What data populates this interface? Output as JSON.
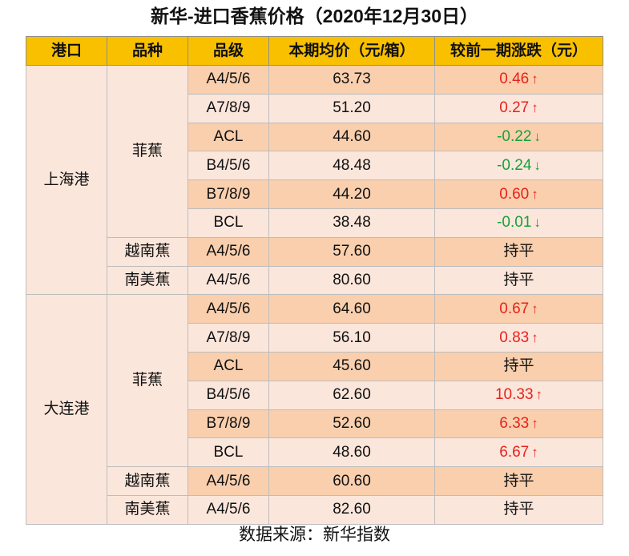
{
  "title": "新华-进口香蕉价格（2020年12月30日）",
  "headers": [
    "港口",
    "品种",
    "品级",
    "本期均价（元/箱）",
    "较前一期涨跌（元）"
  ],
  "colors": {
    "header_bg": "#f9c000",
    "row_dark": "#f9cfad",
    "row_light": "#fbe6db",
    "up": "#e8221c",
    "down": "#14a23c"
  },
  "rows": [
    {
      "port": "上海港",
      "variety": "菲蕉",
      "grade": "A4/5/6",
      "price": "63.73",
      "change": "0.46",
      "dir": "up"
    },
    {
      "port": "上海港",
      "variety": "菲蕉",
      "grade": "A7/8/9",
      "price": "51.20",
      "change": "0.27",
      "dir": "up"
    },
    {
      "port": "上海港",
      "variety": "菲蕉",
      "grade": "ACL",
      "price": "44.60",
      "change": "-0.22",
      "dir": "down"
    },
    {
      "port": "上海港",
      "variety": "菲蕉",
      "grade": "B4/5/6",
      "price": "48.48",
      "change": "-0.24",
      "dir": "down"
    },
    {
      "port": "上海港",
      "variety": "菲蕉",
      "grade": "B7/8/9",
      "price": "44.20",
      "change": "0.60",
      "dir": "up"
    },
    {
      "port": "上海港",
      "variety": "菲蕉",
      "grade": "BCL",
      "price": "38.48",
      "change": "-0.01",
      "dir": "down"
    },
    {
      "port": "上海港",
      "variety": "越南蕉",
      "grade": "A4/5/6",
      "price": "57.60",
      "change": "持平",
      "dir": "flat"
    },
    {
      "port": "上海港",
      "variety": "南美蕉",
      "grade": "A4/5/6",
      "price": "80.60",
      "change": "持平",
      "dir": "flat"
    },
    {
      "port": "大连港",
      "variety": "菲蕉",
      "grade": "A4/5/6",
      "price": "64.60",
      "change": "0.67",
      "dir": "up"
    },
    {
      "port": "大连港",
      "variety": "菲蕉",
      "grade": "A7/8/9",
      "price": "56.10",
      "change": "0.83",
      "dir": "up"
    },
    {
      "port": "大连港",
      "variety": "菲蕉",
      "grade": "ACL",
      "price": "45.60",
      "change": "持平",
      "dir": "flat"
    },
    {
      "port": "大连港",
      "variety": "菲蕉",
      "grade": "B4/5/6",
      "price": "62.60",
      "change": "10.33",
      "dir": "up"
    },
    {
      "port": "大连港",
      "variety": "菲蕉",
      "grade": "B7/8/9",
      "price": "52.60",
      "change": "6.33",
      "dir": "up"
    },
    {
      "port": "大连港",
      "variety": "菲蕉",
      "grade": "BCL",
      "price": "48.60",
      "change": "6.67",
      "dir": "up"
    },
    {
      "port": "大连港",
      "variety": "越南蕉",
      "grade": "A4/5/6",
      "price": "60.60",
      "change": "持平",
      "dir": "flat"
    },
    {
      "port": "大连港",
      "variety": "南美蕉",
      "grade": "A4/5/6",
      "price": "82.60",
      "change": "持平",
      "dir": "flat"
    }
  ],
  "footer": "数据来源：新华指数"
}
